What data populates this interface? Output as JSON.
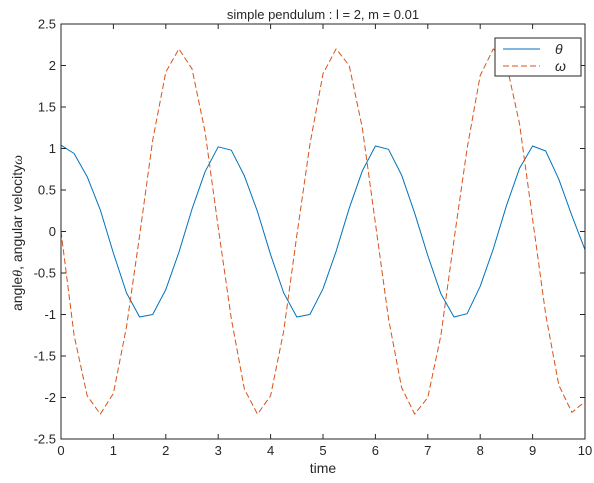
{
  "chart_data": {
    "type": "line",
    "title": "simple pendulum : l = 2, m = 0.01",
    "xlabel": "time",
    "ylabel_parts": {
      "a": "angle",
      "theta": "θ",
      "b": ", angular velocity",
      "omega": "ω"
    },
    "xlim": [
      0,
      10
    ],
    "ylim": [
      -2.5,
      2.5
    ],
    "x_ticks": [
      0,
      1,
      2,
      3,
      4,
      5,
      6,
      7,
      8,
      9,
      10
    ],
    "x_tick_labels": [
      "0",
      "1",
      "2",
      "3",
      "4",
      "5",
      "6",
      "7",
      "8",
      "9",
      "10"
    ],
    "y_ticks": [
      -2.5,
      -2,
      -1.5,
      -1,
      -0.5,
      0,
      0.5,
      1,
      1.5,
      2,
      2.5
    ],
    "y_tick_labels": [
      "-2.5",
      "-2",
      "-1.5",
      "-1",
      "-0.5",
      "0",
      "0.5",
      "1",
      "1.5",
      "2",
      "2.5"
    ],
    "grid": false,
    "legend_position": "top-right",
    "series": [
      {
        "name": "θ",
        "color": "#0072BD",
        "style": "solid",
        "x": [
          0,
          0.25,
          0.5,
          0.75,
          1,
          1.25,
          1.5,
          1.75,
          2,
          2.25,
          2.5,
          2.75,
          3,
          3.25,
          3.5,
          3.75,
          4,
          4.25,
          4.5,
          4.75,
          5,
          5.25,
          5.5,
          5.75,
          6,
          6.25,
          6.5,
          6.75,
          7,
          7.25,
          7.5,
          7.75,
          8,
          8.25,
          8.5,
          8.75,
          9,
          9.25,
          9.5,
          9.75,
          10
        ],
        "values": [
          1.04,
          0.94,
          0.66,
          0.26,
          -0.26,
          -0.74,
          -1.03,
          -1.0,
          -0.7,
          -0.25,
          0.27,
          0.72,
          1.02,
          0.98,
          0.67,
          0.24,
          -0.28,
          -0.74,
          -1.03,
          -1.0,
          -0.69,
          -0.24,
          0.28,
          0.73,
          1.03,
          0.99,
          0.68,
          0.22,
          -0.29,
          -0.75,
          -1.03,
          -0.99,
          -0.66,
          -0.21,
          0.31,
          0.76,
          1.03,
          0.97,
          0.63,
          0.19,
          -0.22
        ]
      },
      {
        "name": "ω",
        "color": "#D95319",
        "style": "dashed",
        "x": [
          0,
          0.25,
          0.5,
          0.75,
          1,
          1.25,
          1.5,
          1.75,
          2,
          2.25,
          2.5,
          2.75,
          3,
          3.25,
          3.5,
          3.75,
          4,
          4.25,
          4.5,
          4.75,
          5,
          5.25,
          5.5,
          5.75,
          6,
          6.25,
          6.5,
          6.75,
          7,
          7.25,
          7.5,
          7.75,
          8,
          8.25,
          8.5,
          8.75,
          9,
          9.25,
          9.5,
          9.75,
          10
        ],
        "values": [
          0,
          -1.25,
          -1.98,
          -2.2,
          -1.95,
          -1.15,
          -0.05,
          1.1,
          1.92,
          2.2,
          1.96,
          1.2,
          0.05,
          -1.05,
          -1.9,
          -2.2,
          -1.98,
          -1.2,
          -0.05,
          1.05,
          1.9,
          2.2,
          2.0,
          1.25,
          0.1,
          -1.05,
          -1.88,
          -2.2,
          -2.0,
          -1.25,
          -0.1,
          1.0,
          1.88,
          2.2,
          2.02,
          1.3,
          0.15,
          -1.0,
          -1.85,
          -2.18,
          -2.05
        ]
      }
    ]
  }
}
